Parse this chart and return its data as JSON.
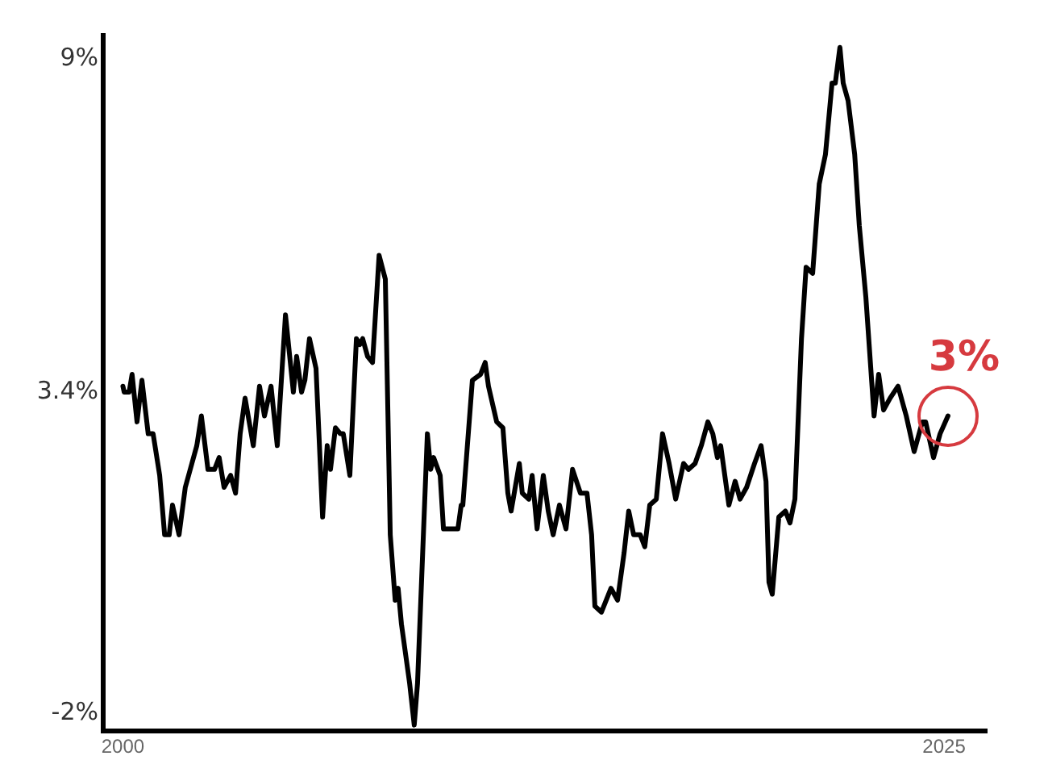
{
  "chart_data": {
    "type": "line",
    "x": [
      2000.0,
      2000.04,
      2000.19,
      2000.28,
      2000.43,
      2000.58,
      2000.77,
      2000.92,
      2001.12,
      2001.27,
      2001.41,
      2001.51,
      2001.71,
      2001.9,
      2002.1,
      2002.25,
      2002.39,
      2002.59,
      2002.79,
      2002.93,
      2003.08,
      2003.28,
      2003.43,
      2003.57,
      2003.72,
      2003.97,
      2004.16,
      2004.31,
      2004.51,
      2004.7,
      2004.95,
      2005.19,
      2005.29,
      2005.44,
      2005.54,
      2005.68,
      2005.88,
      2006.08,
      2006.22,
      2006.32,
      2006.47,
      2006.62,
      2006.71,
      2006.91,
      2007.11,
      2007.21,
      2007.3,
      2007.45,
      2007.6,
      2007.8,
      2007.99,
      2008.14,
      2008.29,
      2008.38,
      2008.48,
      2008.73,
      2008.87,
      2008.97,
      2009.27,
      2009.37,
      2009.46,
      2009.66,
      2009.76,
      2010.0,
      2010.2,
      2010.3,
      2010.35,
      2010.64,
      2010.89,
      2011.03,
      2011.13,
      2011.38,
      2011.57,
      2011.72,
      2011.82,
      2012.07,
      2012.16,
      2012.36,
      2012.46,
      2012.61,
      2012.8,
      2012.95,
      2013.1,
      2013.29,
      2013.49,
      2013.69,
      2013.93,
      2014.13,
      2014.27,
      2014.37,
      2014.57,
      2014.86,
      2015.06,
      2015.26,
      2015.4,
      2015.55,
      2015.75,
      2015.89,
      2016.04,
      2016.24,
      2016.43,
      2016.63,
      2016.83,
      2017.07,
      2017.22,
      2017.42,
      2017.61,
      2017.81,
      2017.96,
      2018.1,
      2018.2,
      2018.45,
      2018.64,
      2018.79,
      2018.99,
      2019.23,
      2019.43,
      2019.58,
      2019.67,
      2019.77,
      2019.97,
      2020.17,
      2020.31,
      2020.46,
      2020.66,
      2020.8,
      2021.0,
      2021.2,
      2021.39,
      2021.59,
      2021.69,
      2021.83,
      2021.93,
      2022.08,
      2022.28,
      2022.42,
      2022.62,
      2022.87,
      2023.01,
      2023.16,
      2023.36,
      2023.6,
      2023.85,
      2024.09,
      2024.34,
      2024.44,
      2024.68,
      2024.88,
      2025.12
    ],
    "series": [
      {
        "color": "#000000",
        "values": [
          3.5,
          3.4,
          3.4,
          3.7,
          2.9,
          3.6,
          2.7,
          2.7,
          2.0,
          1.0,
          1.0,
          1.5,
          1.0,
          1.8,
          2.2,
          2.5,
          3.0,
          2.1,
          2.1,
          2.3,
          1.8,
          2.0,
          1.7,
          2.7,
          3.3,
          2.5,
          3.5,
          3.0,
          3.5,
          2.5,
          4.7,
          3.4,
          4.0,
          3.4,
          3.6,
          4.3,
          3.8,
          1.3,
          2.5,
          2.1,
          2.8,
          2.7,
          2.7,
          2.0,
          4.3,
          4.2,
          4.3,
          4.0,
          3.9,
          5.7,
          5.3,
          1.0,
          -0.1,
          0.1,
          -0.5,
          -1.5,
          -2.2,
          -1.5,
          2.7,
          2.1,
          2.3,
          2.0,
          1.1,
          1.1,
          1.1,
          1.5,
          1.5,
          3.6,
          3.7,
          3.9,
          3.5,
          2.9,
          2.8,
          1.7,
          1.4,
          2.2,
          1.7,
          1.6,
          2.0,
          1.1,
          2.0,
          1.4,
          1.0,
          1.5,
          1.1,
          2.1,
          1.7,
          1.7,
          1.0,
          -0.2,
          -0.3,
          0.1,
          -0.1,
          0.7,
          1.4,
          1.0,
          1.0,
          0.8,
          1.5,
          1.6,
          2.7,
          2.2,
          1.6,
          2.2,
          2.1,
          2.2,
          2.5,
          2.9,
          2.7,
          2.3,
          2.5,
          1.5,
          1.9,
          1.6,
          1.8,
          2.2,
          2.5,
          1.9,
          0.2,
          0.0,
          1.3,
          1.4,
          1.2,
          1.6,
          4.3,
          5.5,
          5.4,
          6.9,
          7.4,
          8.6,
          8.6,
          9.2,
          8.6,
          8.3,
          7.4,
          6.2,
          5.0,
          3.0,
          3.7,
          3.1,
          3.3,
          3.5,
          3.0,
          2.4,
          2.9,
          2.9,
          2.3,
          2.7,
          3.0
        ]
      }
    ],
    "xlim": [
      1999.4,
      2026.3
    ],
    "xticks": [
      2000,
      2025
    ],
    "ylim": [
      -2.3,
      9.4
    ],
    "yticks": [
      {
        "value": -2,
        "label": "-2%"
      },
      {
        "value": 3.4,
        "label": "3.4%"
      },
      {
        "value": 9,
        "label": "9%"
      }
    ],
    "annotations": [
      {
        "text": "3%",
        "x": 2025.12,
        "y": 3.0
      }
    ]
  }
}
